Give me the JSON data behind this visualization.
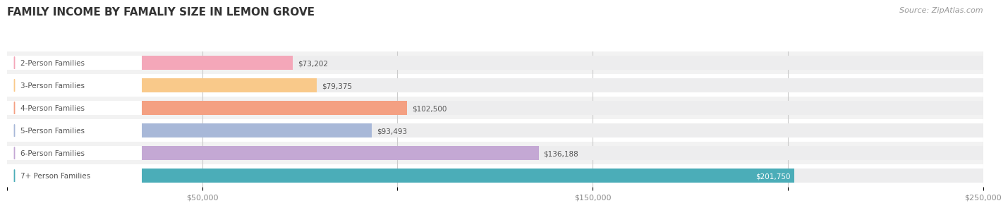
{
  "title": "FAMILY INCOME BY FAMALIY SIZE IN LEMON GROVE",
  "source": "Source: ZipAtlas.com",
  "categories": [
    "2-Person Families",
    "3-Person Families",
    "4-Person Families",
    "5-Person Families",
    "6-Person Families",
    "7+ Person Families"
  ],
  "values": [
    73202,
    79375,
    102500,
    93493,
    136188,
    201750
  ],
  "bar_colors": [
    "#F4A7B9",
    "#F9C98A",
    "#F4A082",
    "#A8B8D8",
    "#C4A8D4",
    "#4BADB8"
  ],
  "bar_bg_color": "#EDEDEE",
  "label_text_color": "#555555",
  "value_text_color": "#555555",
  "title_color": "#333333",
  "source_color": "#999999",
  "xlim": [
    0,
    250000
  ],
  "xticks": [
    0,
    50000,
    100000,
    150000,
    200000,
    250000
  ],
  "xtick_labels": [
    "",
    "$50,000",
    "",
    "$150,000",
    "",
    "$250,000"
  ],
  "background_color": "#FFFFFF",
  "bar_height": 0.62,
  "row_bg_colors": [
    "#F2F2F2",
    "#FFFFFF"
  ]
}
